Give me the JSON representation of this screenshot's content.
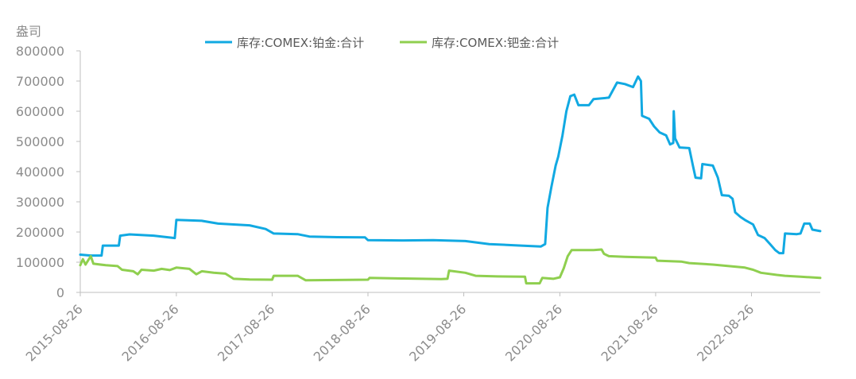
{
  "chart_data": {
    "type": "line",
    "ylabel": "盎司",
    "ylim": [
      0,
      800000
    ],
    "y_ticks": [
      "800000",
      "700000",
      "600000",
      "500000",
      "400000",
      "300000",
      "200000",
      "100000",
      "0"
    ],
    "x_ticks": [
      "2015-08-26",
      "2016-08-26",
      "2017-08-26",
      "2018-08-26",
      "2019-08-26",
      "2020-08-26",
      "2021-08-26",
      "2022-08-26"
    ],
    "xlim": [
      "2015-08-26",
      "2023-05-15"
    ],
    "grid": false,
    "legend_position": "top",
    "series": [
      {
        "name": "库存:COMEX:铂金:合计",
        "color": "#11a9e2",
        "points": [
          [
            "2015-08-26",
            125000
          ],
          [
            "2015-10-05",
            122000
          ],
          [
            "2015-11-15",
            122000
          ],
          [
            "2015-11-20",
            155000
          ],
          [
            "2016-01-20",
            155000
          ],
          [
            "2016-01-25",
            188000
          ],
          [
            "2016-03-01",
            192000
          ],
          [
            "2016-06-01",
            188000
          ],
          [
            "2016-08-20",
            180000
          ],
          [
            "2016-08-26",
            240000
          ],
          [
            "2016-12-01",
            237000
          ],
          [
            "2017-02-01",
            228000
          ],
          [
            "2017-04-01",
            225000
          ],
          [
            "2017-06-01",
            222000
          ],
          [
            "2017-08-01",
            210000
          ],
          [
            "2017-09-01",
            195000
          ],
          [
            "2017-12-01",
            193000
          ],
          [
            "2018-01-15",
            185000
          ],
          [
            "2018-05-01",
            183000
          ],
          [
            "2018-08-15",
            182000
          ],
          [
            "2018-08-26",
            173000
          ],
          [
            "2019-01-01",
            172000
          ],
          [
            "2019-05-01",
            173000
          ],
          [
            "2019-09-01",
            170000
          ],
          [
            "2019-12-01",
            160000
          ],
          [
            "2020-04-01",
            155000
          ],
          [
            "2020-06-15",
            152000
          ],
          [
            "2020-07-01",
            160000
          ],
          [
            "2020-07-10",
            280000
          ],
          [
            "2020-07-25",
            350000
          ],
          [
            "2020-08-10",
            420000
          ],
          [
            "2020-08-20",
            450000
          ],
          [
            "2020-09-05",
            520000
          ],
          [
            "2020-09-20",
            600000
          ],
          [
            "2020-10-05",
            650000
          ],
          [
            "2020-10-20",
            655000
          ],
          [
            "2020-11-05",
            620000
          ],
          [
            "2020-12-15",
            620000
          ],
          [
            "2021-01-01",
            640000
          ],
          [
            "2021-03-01",
            645000
          ],
          [
            "2021-04-01",
            695000
          ],
          [
            "2021-05-01",
            690000
          ],
          [
            "2021-06-01",
            680000
          ],
          [
            "2021-06-20",
            715000
          ],
          [
            "2021-07-01",
            700000
          ],
          [
            "2021-07-05",
            585000
          ],
          [
            "2021-08-01",
            575000
          ],
          [
            "2021-08-20",
            550000
          ],
          [
            "2021-09-10",
            530000
          ],
          [
            "2021-10-05",
            520000
          ],
          [
            "2021-10-20",
            490000
          ],
          [
            "2021-11-01",
            495000
          ],
          [
            "2021-11-03",
            600000
          ],
          [
            "2021-11-08",
            510000
          ],
          [
            "2021-11-25",
            480000
          ],
          [
            "2022-01-01",
            478000
          ],
          [
            "2022-01-15",
            420000
          ],
          [
            "2022-01-25",
            380000
          ],
          [
            "2022-02-15",
            378000
          ],
          [
            "2022-02-20",
            425000
          ],
          [
            "2022-04-01",
            420000
          ],
          [
            "2022-04-20",
            380000
          ],
          [
            "2022-05-05",
            322000
          ],
          [
            "2022-06-01",
            320000
          ],
          [
            "2022-06-15",
            310000
          ],
          [
            "2022-06-25",
            265000
          ],
          [
            "2022-07-15",
            250000
          ],
          [
            "2022-08-01",
            240000
          ],
          [
            "2022-09-01",
            225000
          ],
          [
            "2022-09-20",
            190000
          ],
          [
            "2022-10-15",
            180000
          ],
          [
            "2022-11-05",
            160000
          ],
          [
            "2022-11-25",
            140000
          ],
          [
            "2022-12-10",
            130000
          ],
          [
            "2022-12-25",
            130000
          ],
          [
            "2023-01-01",
            195000
          ],
          [
            "2023-02-15",
            193000
          ],
          [
            "2023-03-01",
            195000
          ],
          [
            "2023-03-15",
            228000
          ],
          [
            "2023-04-05",
            228000
          ],
          [
            "2023-04-15",
            208000
          ],
          [
            "2023-05-15",
            203000
          ]
        ]
      },
      {
        "name": "库存:COMEX:钯金:合计",
        "color": "#8fcf4f",
        "points": [
          [
            "2015-08-26",
            90000
          ],
          [
            "2015-09-05",
            110000
          ],
          [
            "2015-09-15",
            92000
          ],
          [
            "2015-10-05",
            120000
          ],
          [
            "2015-10-15",
            95000
          ],
          [
            "2015-12-01",
            90000
          ],
          [
            "2016-01-15",
            87000
          ],
          [
            "2016-02-01",
            75000
          ],
          [
            "2016-03-15",
            70000
          ],
          [
            "2016-04-01",
            60000
          ],
          [
            "2016-04-15",
            75000
          ],
          [
            "2016-06-01",
            72000
          ],
          [
            "2016-07-01",
            78000
          ],
          [
            "2016-08-01",
            74000
          ],
          [
            "2016-08-26",
            82000
          ],
          [
            "2016-10-15",
            78000
          ],
          [
            "2016-11-10",
            60000
          ],
          [
            "2016-12-01",
            70000
          ],
          [
            "2017-01-15",
            65000
          ],
          [
            "2017-03-01",
            62000
          ],
          [
            "2017-04-01",
            45000
          ],
          [
            "2017-06-01",
            43000
          ],
          [
            "2017-08-26",
            42000
          ],
          [
            "2017-09-01",
            55000
          ],
          [
            "2017-12-01",
            55000
          ],
          [
            "2018-01-01",
            40000
          ],
          [
            "2018-05-01",
            41000
          ],
          [
            "2018-08-26",
            42000
          ],
          [
            "2018-09-01",
            48000
          ],
          [
            "2019-01-01",
            46000
          ],
          [
            "2019-06-01",
            44000
          ],
          [
            "2019-06-25",
            45000
          ],
          [
            "2019-07-01",
            72000
          ],
          [
            "2019-09-01",
            65000
          ],
          [
            "2019-10-10",
            55000
          ],
          [
            "2020-01-01",
            53000
          ],
          [
            "2020-04-15",
            52000
          ],
          [
            "2020-04-20",
            30000
          ],
          [
            "2020-06-10",
            30000
          ],
          [
            "2020-06-20",
            48000
          ],
          [
            "2020-08-01",
            45000
          ],
          [
            "2020-08-26",
            50000
          ],
          [
            "2020-09-10",
            80000
          ],
          [
            "2020-09-25",
            120000
          ],
          [
            "2020-10-10",
            140000
          ],
          [
            "2021-01-01",
            140000
          ],
          [
            "2021-02-01",
            142000
          ],
          [
            "2021-02-10",
            128000
          ],
          [
            "2021-03-01",
            120000
          ],
          [
            "2021-05-01",
            118000
          ],
          [
            "2021-08-26",
            115000
          ],
          [
            "2021-09-01",
            105000
          ],
          [
            "2021-12-01",
            102000
          ],
          [
            "2022-01-01",
            97000
          ],
          [
            "2022-04-01",
            92000
          ],
          [
            "2022-08-01",
            82000
          ],
          [
            "2022-09-01",
            75000
          ],
          [
            "2022-10-01",
            65000
          ],
          [
            "2022-12-01",
            58000
          ],
          [
            "2023-01-01",
            55000
          ],
          [
            "2023-03-01",
            52000
          ],
          [
            "2023-05-15",
            48000
          ]
        ]
      }
    ]
  }
}
